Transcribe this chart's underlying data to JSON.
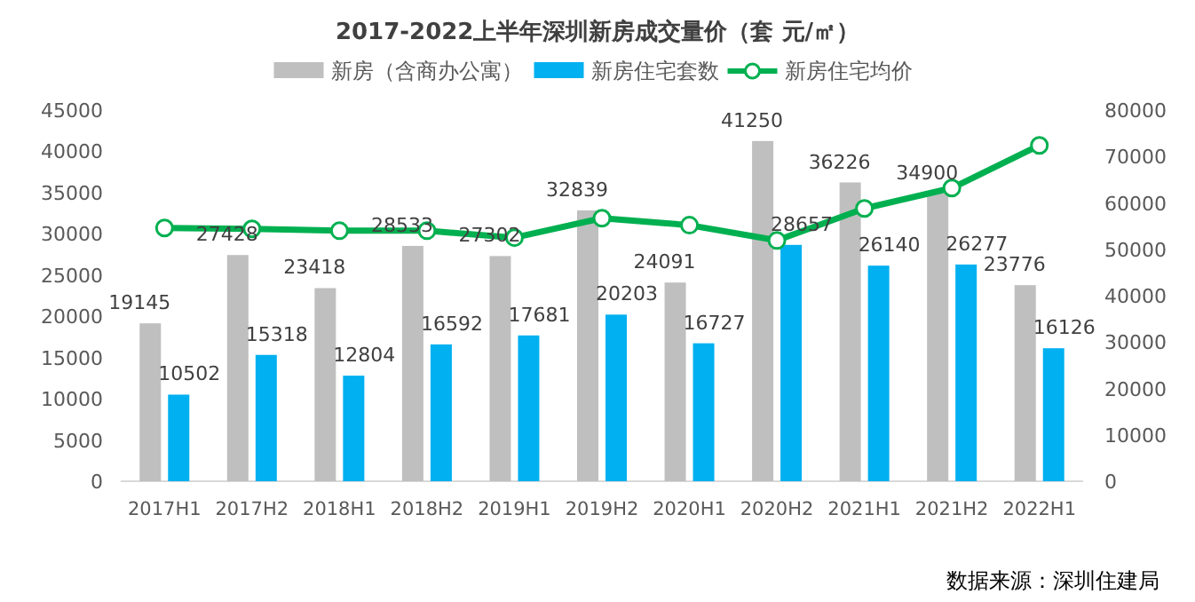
{
  "chart_data": {
    "type": "bar",
    "title": "2017-2022上半年深圳新房成交量价（套 元/㎡）",
    "categories": [
      "2017H1",
      "2017H2",
      "2018H1",
      "2018H2",
      "2019H1",
      "2019H2",
      "2020H1",
      "2020H2",
      "2021H1",
      "2021H2",
      "2022H1"
    ],
    "series": [
      {
        "name": "新房（含商办公寓）",
        "color": "#bfbfbf",
        "values": [
          19145,
          27428,
          23418,
          28533,
          27302,
          32839,
          24091,
          41250,
          36226,
          34900,
          23776
        ],
        "value_labels": [
          "19145",
          "27428",
          "23418",
          "28533",
          "27302",
          "32839",
          "24091",
          "41250",
          "36226",
          "34900",
          "23776"
        ]
      },
      {
        "name": "新房住宅套数",
        "color": "#00b0f0",
        "values": [
          10502,
          15318,
          12804,
          16592,
          17681,
          20203,
          16727,
          28657,
          26140,
          26277,
          16126
        ],
        "value_labels": [
          "10502",
          "15318",
          "12804",
          "16592",
          "17681",
          "20203",
          "16727",
          "28657",
          "26140",
          "26277",
          "16126"
        ]
      },
      {
        "name": "新房住宅均价",
        "type": "line",
        "axis": "y2",
        "color": "#00b050",
        "marker": "circle",
        "values": [
          54600,
          54400,
          54000,
          54000,
          52500,
          56700,
          55200,
          51900,
          58800,
          63200,
          72400
        ]
      }
    ],
    "ylim": [
      0,
      45000
    ],
    "yticks": [
      0,
      5000,
      10000,
      15000,
      20000,
      25000,
      30000,
      35000,
      40000,
      45000
    ],
    "y2lim": [
      0,
      80000
    ],
    "y2ticks": [
      0,
      10000,
      20000,
      30000,
      40000,
      50000,
      60000,
      70000,
      80000
    ],
    "grid": false,
    "legend": "top",
    "annotations": [
      "数据来源：深圳住建局"
    ]
  }
}
